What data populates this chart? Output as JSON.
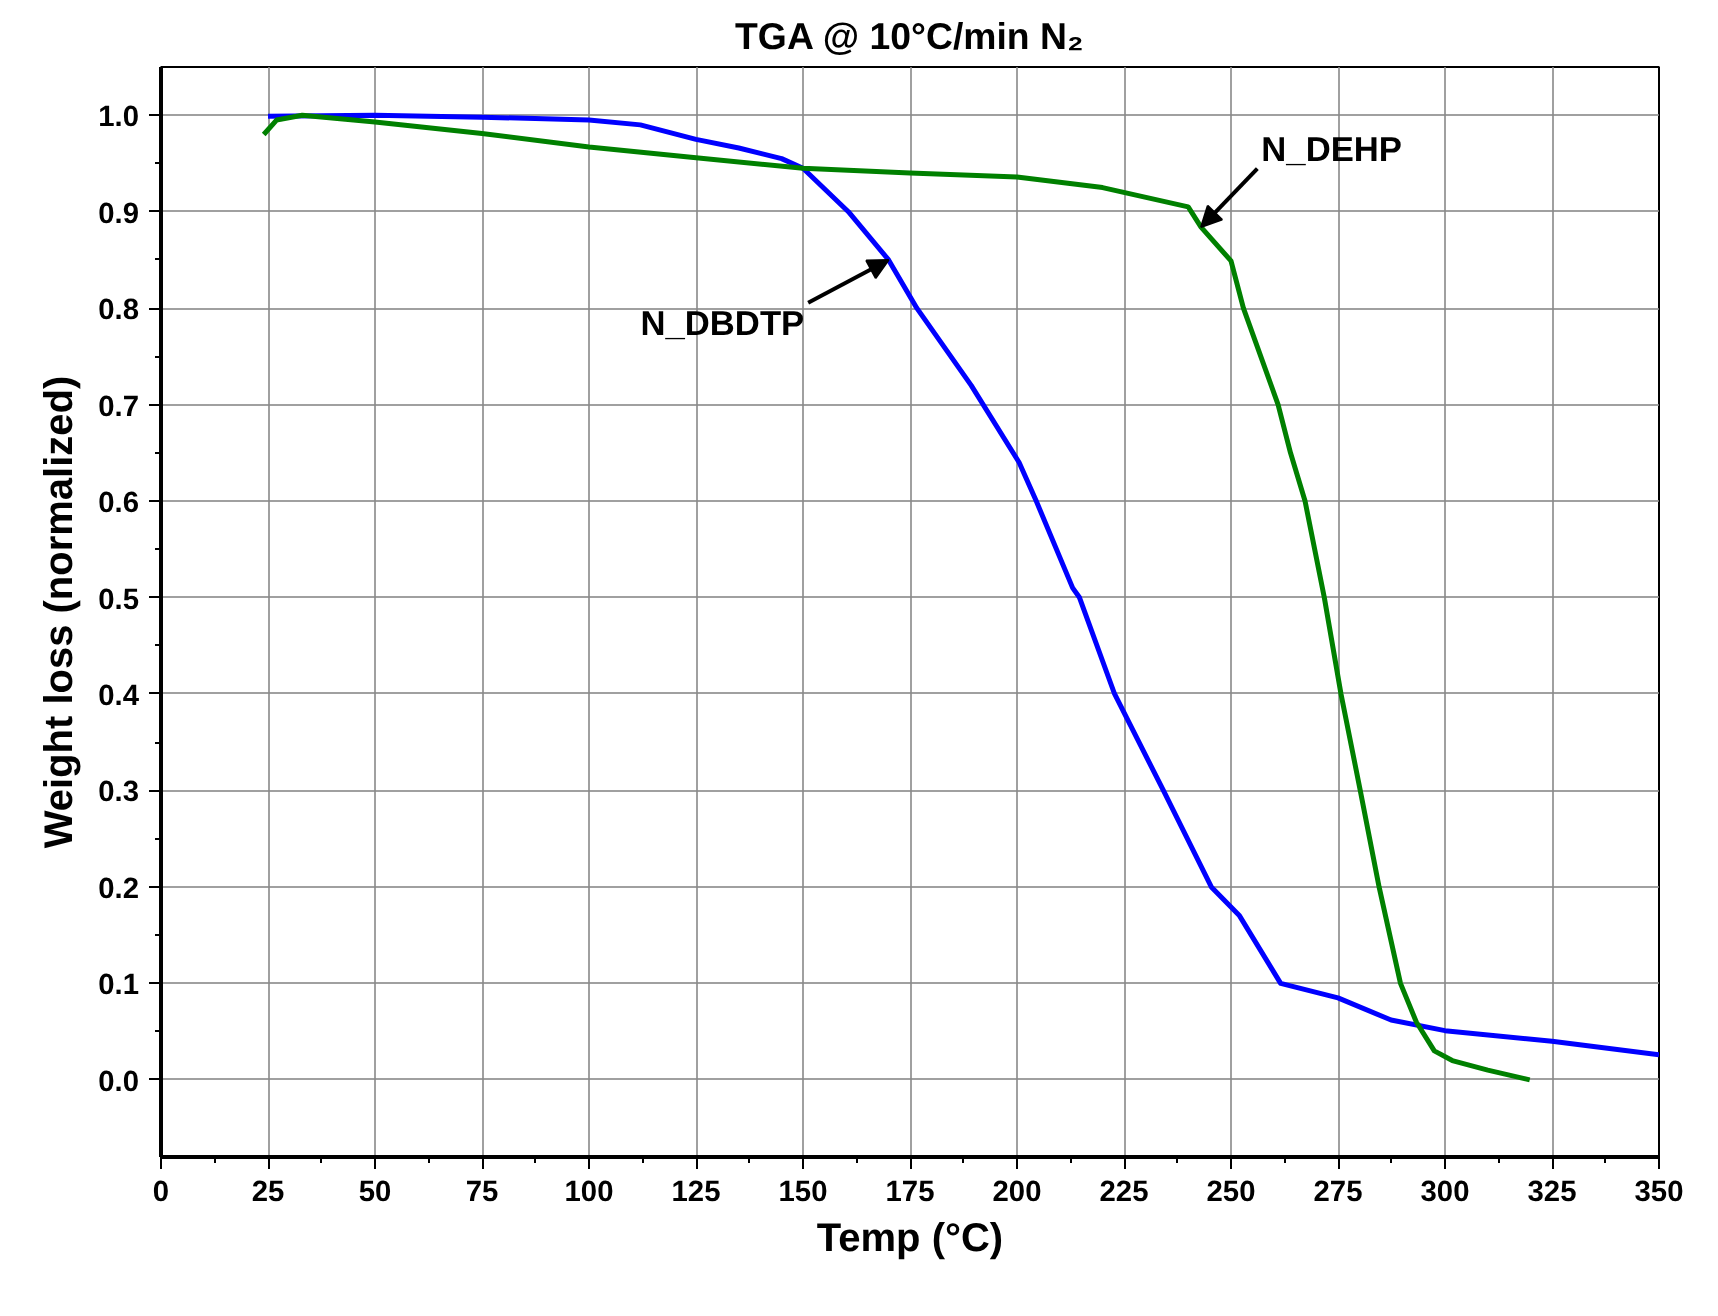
{
  "chart_data": {
    "type": "line",
    "title": "TGA @ 10°C/min N₂",
    "xlabel": "Temp (°C)",
    "ylabel": "Weight loss (normalized)",
    "series": [
      {
        "name": "N_DBDTP",
        "color": "#0000ff",
        "x": [
          25,
          50,
          75,
          100,
          112,
          125,
          135,
          145,
          150,
          160.6,
          170,
          176.6,
          189.3,
          200.5,
          204.5,
          213,
          214.6,
          222.8,
          234.2,
          245.4,
          252,
          261.6,
          275,
          287.4,
          300,
          325,
          350
        ],
        "values": [
          0.999,
          1.0,
          0.998,
          0.995,
          0.99,
          0.975,
          0.966,
          0.955,
          0.945,
          0.9,
          0.85,
          0.8,
          0.72,
          0.64,
          0.6,
          0.51,
          0.5,
          0.4,
          0.3,
          0.2,
          0.17,
          0.1,
          0.085,
          0.062,
          0.051,
          0.04,
          0.026
        ]
      },
      {
        "name": "N_DEHP",
        "color": "#008000",
        "x": [
          24,
          27,
          33,
          50,
          75,
          100,
          125,
          150,
          175,
          200,
          220,
          240,
          243,
          250,
          252.9,
          261,
          263.9,
          267.3,
          271.8,
          275.7,
          280.2,
          284.6,
          289.6,
          293.3,
          297.5,
          301.7,
          310,
          319.8
        ],
        "values": [
          0.98,
          0.995,
          1.0,
          0.993,
          0.981,
          0.967,
          0.956,
          0.945,
          0.94,
          0.936,
          0.925,
          0.905,
          0.884,
          0.849,
          0.8,
          0.7,
          0.65,
          0.6,
          0.5,
          0.4,
          0.3,
          0.2,
          0.1,
          0.06,
          0.03,
          0.02,
          0.01,
          0.0
        ]
      }
    ],
    "xlim": [
      0,
      350
    ],
    "xticks": [
      0,
      25,
      50,
      75,
      100,
      125,
      150,
      175,
      200,
      225,
      250,
      275,
      300,
      325,
      350
    ],
    "ylim": [
      -0.08,
      1.05
    ],
    "yticks": [
      {
        "value": 0,
        "label": "0.0"
      },
      0.1,
      0.2,
      0.3,
      0.4,
      0.5,
      0.6,
      0.7,
      0.8,
      0.9,
      {
        "value": 1,
        "label": "1.0"
      }
    ],
    "grid": true,
    "legend": false,
    "marker": "none",
    "line_style": "solid"
  }
}
